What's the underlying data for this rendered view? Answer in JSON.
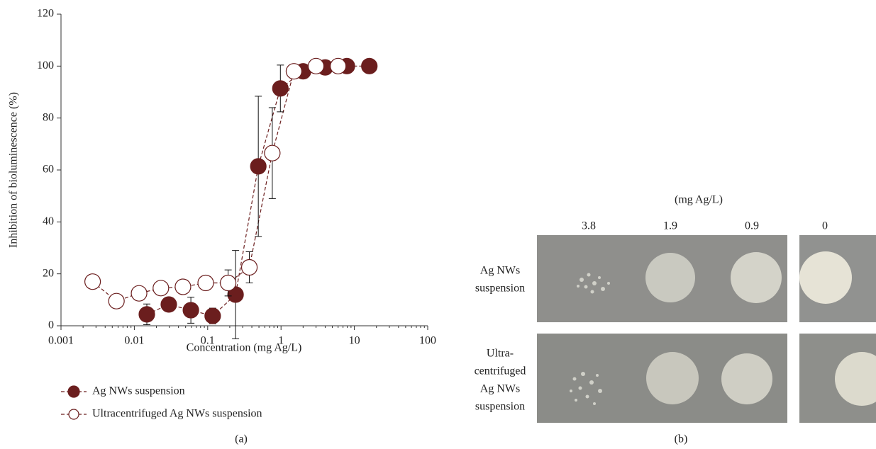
{
  "chart_data": {
    "type": "scatter",
    "x_label": "Concentration (mg Ag/L)",
    "y_label": "Inhibition of bioluminescence (%)",
    "xlim": [
      0.001,
      100
    ],
    "xticks": [
      0.001,
      0.01,
      0.1,
      1,
      10,
      100
    ],
    "xscale": "log",
    "ylim": [
      0,
      120
    ],
    "yticks": [
      0,
      20,
      40,
      60,
      80,
      100,
      120
    ],
    "legend": "below",
    "caption": "(a)",
    "series": [
      {
        "name": "Ag NWs suspension",
        "color": "#6b1e1e",
        "marker": "filled",
        "x": [
          0.0148,
          0.0295,
          0.059,
          0.117,
          0.24,
          0.49,
          0.98,
          2.0,
          4.0,
          7.9,
          16
        ],
        "values": [
          4.4,
          8.2,
          6,
          3.8,
          12,
          61.4,
          91.4,
          98,
          99.5,
          100,
          100
        ],
        "errors": [
          4,
          1,
          5,
          3,
          17,
          27,
          9,
          1,
          1,
          0.5,
          0.5
        ]
      },
      {
        "name": "Ultracentrifuged Ag NWs suspension",
        "color": "#6b1e1e",
        "marker": "open",
        "x": [
          0.0027,
          0.0057,
          0.0116,
          0.023,
          0.046,
          0.094,
          0.19,
          0.37,
          0.76,
          1.5,
          3.0,
          6.0
        ],
        "values": [
          17,
          9.5,
          12.5,
          14.5,
          15,
          16.5,
          16.5,
          22.5,
          66.5,
          98,
          100,
          100
        ],
        "errors": [
          0.5,
          1.5,
          1,
          2,
          0.5,
          1,
          5,
          6,
          17.5,
          1,
          0.5,
          0.5
        ]
      }
    ]
  },
  "panel_b": {
    "unit": "(mg Ag/L)",
    "concentrations": [
      3.8,
      1.9,
      0.9,
      0
    ],
    "rows": [
      [
        "Ag NWs",
        "suspension"
      ],
      [
        "Ultra-",
        "centrifuged",
        "Ag NWs",
        "suspension"
      ]
    ],
    "caption": "(b)"
  }
}
